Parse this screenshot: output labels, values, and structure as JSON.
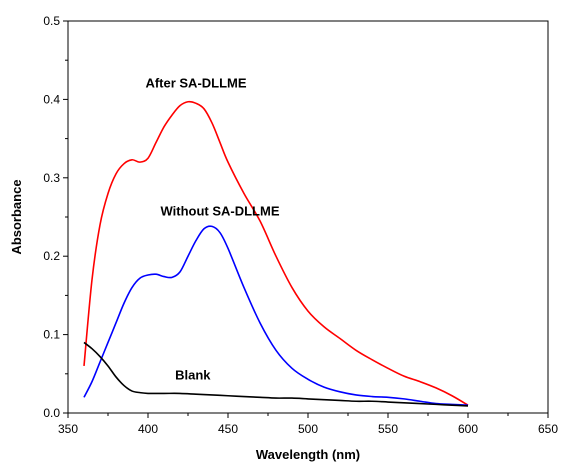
{
  "chart_data": {
    "type": "line",
    "title": "",
    "xlabel": "Wavelength (nm)",
    "ylabel": "Absorbance",
    "xlim": [
      350,
      650
    ],
    "ylim": [
      0,
      0.5
    ],
    "xticks": [
      350,
      400,
      450,
      500,
      550,
      600,
      650
    ],
    "yticks": [
      0.0,
      0.1,
      0.2,
      0.3,
      0.4,
      0.5
    ],
    "xtick_labels": [
      "350",
      "400",
      "450",
      "500",
      "550",
      "600",
      "650"
    ],
    "ytick_labels": [
      "0.0",
      "0.1",
      "0.2",
      "0.3",
      "0.4",
      "0.5"
    ],
    "grid": false,
    "legend": "none",
    "series": [
      {
        "color": "#ff0000",
        "x": [
          360,
          365,
          370,
          375,
          380,
          385,
          390,
          395,
          400,
          405,
          410,
          415,
          420,
          425,
          430,
          435,
          440,
          445,
          450,
          460,
          470,
          480,
          490,
          500,
          510,
          520,
          530,
          540,
          550,
          560,
          570,
          580,
          590,
          600
        ],
        "y": [
          0.06,
          0.17,
          0.24,
          0.28,
          0.305,
          0.318,
          0.323,
          0.32,
          0.325,
          0.345,
          0.365,
          0.38,
          0.392,
          0.397,
          0.395,
          0.388,
          0.37,
          0.345,
          0.32,
          0.28,
          0.245,
          0.2,
          0.16,
          0.13,
          0.11,
          0.095,
          0.08,
          0.068,
          0.057,
          0.047,
          0.04,
          0.032,
          0.022,
          0.01
        ]
      },
      {
        "color": "#0000ff",
        "x": [
          360,
          365,
          370,
          375,
          380,
          385,
          390,
          395,
          400,
          405,
          410,
          415,
          420,
          425,
          430,
          435,
          440,
          445,
          450,
          460,
          470,
          480,
          490,
          500,
          510,
          520,
          530,
          540,
          550,
          560,
          570,
          580,
          590,
          600
        ],
        "y": [
          0.02,
          0.04,
          0.065,
          0.09,
          0.115,
          0.14,
          0.16,
          0.172,
          0.176,
          0.177,
          0.174,
          0.173,
          0.18,
          0.2,
          0.22,
          0.235,
          0.238,
          0.23,
          0.21,
          0.16,
          0.115,
          0.08,
          0.057,
          0.043,
          0.033,
          0.027,
          0.023,
          0.021,
          0.02,
          0.018,
          0.015,
          0.012,
          0.011,
          0.01
        ]
      },
      {
        "color": "#000000",
        "x": [
          360,
          365,
          370,
          375,
          380,
          385,
          390,
          395,
          400,
          410,
          420,
          430,
          440,
          450,
          460,
          470,
          480,
          490,
          500,
          510,
          520,
          530,
          540,
          550,
          560,
          570,
          580,
          590,
          600
        ],
        "y": [
          0.09,
          0.082,
          0.072,
          0.06,
          0.046,
          0.035,
          0.028,
          0.026,
          0.025,
          0.025,
          0.025,
          0.024,
          0.023,
          0.022,
          0.021,
          0.02,
          0.019,
          0.019,
          0.018,
          0.017,
          0.016,
          0.015,
          0.015,
          0.014,
          0.013,
          0.012,
          0.011,
          0.01,
          0.009
        ]
      }
    ],
    "annotations": [
      {
        "text": "After SA-DLLME",
        "x": 430,
        "y": 0.415
      },
      {
        "text": "Without SA-DLLME",
        "x": 445,
        "y": 0.252
      },
      {
        "text": "Blank",
        "x": 428,
        "y": 0.043
      }
    ]
  }
}
